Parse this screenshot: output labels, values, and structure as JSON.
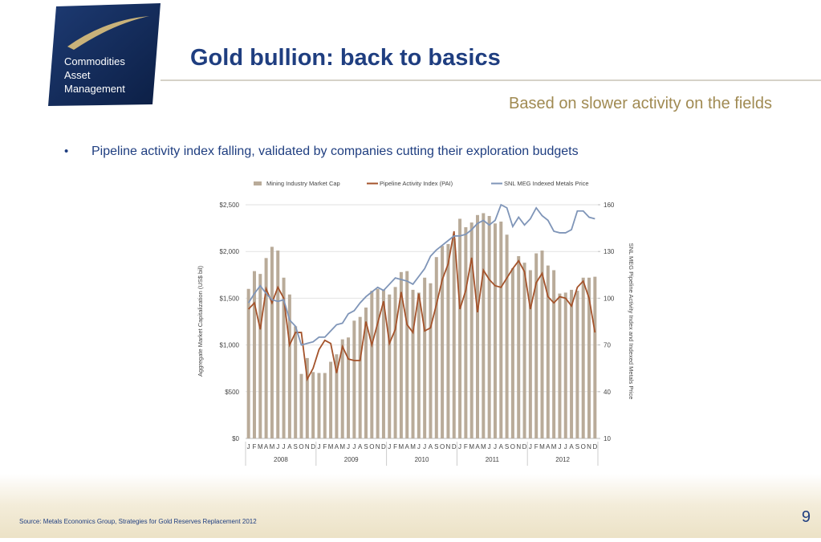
{
  "logo": {
    "lines": [
      "Commodities",
      "Asset",
      "Management"
    ]
  },
  "header": {
    "title": "Gold bullion: back to basics",
    "subtitle": "Based on slower activity on the fields"
  },
  "bullets": [
    "Pipeline activity index falling, validated by companies cutting their exploration budgets"
  ],
  "footer": {
    "source": "Source:  Metals Economics Group, Strategies for Gold Reserves Replacement 2012",
    "page": "9"
  },
  "chart_data": {
    "type": "bar_line",
    "y_label": "Aggregate Market Capitalization (US$ bil)",
    "y2_label": "SNL MEG Pipeline Activity Index and Indexed Metals Price",
    "categories": [
      "J",
      "F",
      "M",
      "A",
      "M",
      "J",
      "J",
      "A",
      "S",
      "O",
      "N",
      "D",
      "J",
      "F",
      "M",
      "A",
      "M",
      "J",
      "J",
      "A",
      "S",
      "O",
      "N",
      "D",
      "J",
      "F",
      "M",
      "A",
      "M",
      "J",
      "J",
      "A",
      "S",
      "O",
      "N",
      "D",
      "J",
      "F",
      "M",
      "A",
      "M",
      "J",
      "J",
      "A",
      "S",
      "O",
      "N",
      "D",
      "J",
      "F",
      "M",
      "A",
      "M",
      "J",
      "J",
      "A",
      "S",
      "O",
      "N",
      "D"
    ],
    "year_labels": [
      "2008",
      "2009",
      "2010",
      "2011",
      "2012"
    ],
    "ylim": [
      0,
      2500
    ],
    "yticks": [
      {
        "value": 0,
        "label": "$0"
      },
      {
        "value": 500,
        "label": "$500"
      },
      {
        "value": 1000,
        "label": "$1,000"
      },
      {
        "value": 1500,
        "label": "$1,500"
      },
      {
        "value": 2000,
        "label": "$2,000"
      },
      {
        "value": 2500,
        "label": "$2,500"
      }
    ],
    "y2lim": [
      10,
      160
    ],
    "y2ticks": [
      10,
      40,
      70,
      100,
      130,
      160
    ],
    "grid": true,
    "legend": "top",
    "series": [
      {
        "name": "Mining Industry Market Cap",
        "type": "bar",
        "color": "#b9ab99",
        "values": [
          1600,
          1790,
          1760,
          1930,
          2050,
          2010,
          1720,
          1540,
          1200,
          690,
          860,
          710,
          700,
          700,
          820,
          900,
          1060,
          1080,
          1260,
          1300,
          1400,
          1580,
          1600,
          1590,
          1540,
          1620,
          1780,
          1790,
          1590,
          1560,
          1720,
          1660,
          1940,
          2060,
          2080,
          2140,
          2350,
          2260,
          2310,
          2390,
          2410,
          2380,
          2300,
          2320,
          2180,
          1820,
          1950,
          1880,
          1800,
          1980,
          2010,
          1850,
          1800,
          1550,
          1560,
          1590,
          1580,
          1720,
          1720,
          1730
        ]
      },
      {
        "name": "Pipeline Activity Index (PAI)",
        "type": "line",
        "axis": "y2",
        "color": "#a4532b",
        "values": [
          93,
          97,
          80,
          106,
          97,
          107,
          100,
          70,
          78,
          78,
          48,
          55,
          67,
          73,
          71,
          52,
          69,
          61,
          60,
          60,
          85,
          70,
          84,
          98,
          71,
          80,
          104,
          83,
          78,
          103,
          79,
          81,
          96,
          112,
          122,
          143,
          93,
          105,
          126,
          91,
          118,
          112,
          108,
          107,
          113,
          119,
          124,
          117,
          93,
          110,
          116,
          101,
          97,
          101,
          100,
          95,
          107,
          111,
          100,
          78
        ]
      },
      {
        "name": "SNL MEG Indexed Metals Price",
        "type": "line",
        "axis": "y2",
        "color": "#7f95b8",
        "values": [
          97,
          103,
          108,
          103,
          99,
          98,
          99,
          86,
          82,
          70,
          71,
          72,
          75,
          75,
          79,
          83,
          84,
          90,
          92,
          97,
          101,
          104,
          107,
          105,
          109,
          113,
          112,
          111,
          109,
          114,
          119,
          127,
          131,
          134,
          137,
          140,
          140,
          141,
          144,
          148,
          150,
          147,
          150,
          160,
          158,
          146,
          152,
          147,
          151,
          158,
          153,
          150,
          143,
          142,
          142,
          144,
          156,
          156,
          152,
          151
        ]
      }
    ]
  }
}
